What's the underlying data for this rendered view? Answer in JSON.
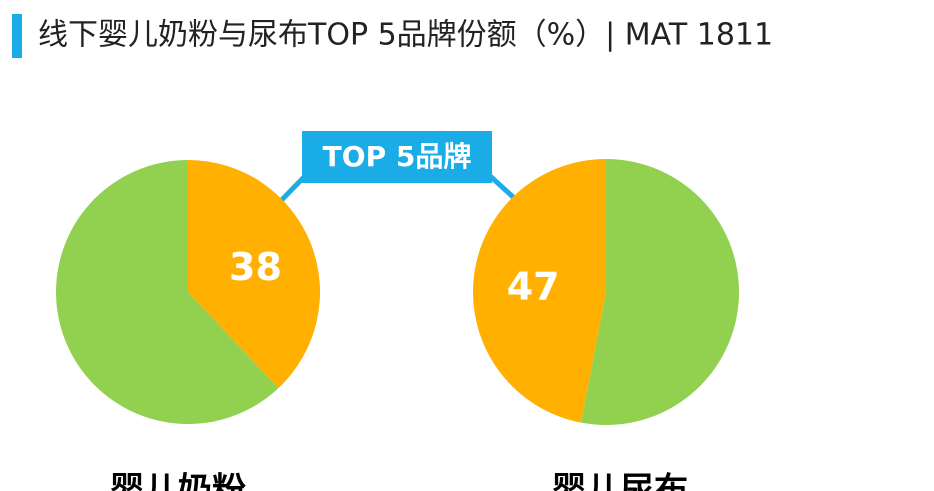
{
  "title": "线下婴儿奶粉与尿布TOP 5品牌份额（%）| MAT 1811",
  "annotation": "TOP 5品牌",
  "chart_data": [
    {
      "type": "pie",
      "title": "婴儿奶粉",
      "values": [
        38,
        62
      ],
      "colors": [
        "#FFB000",
        "#92D050"
      ],
      "value_labels": [
        "38",
        null
      ]
    },
    {
      "type": "pie",
      "title": "婴儿尿布",
      "values": [
        53,
        47
      ],
      "colors": [
        "#92D050",
        "#FFB000"
      ],
      "value_labels": [
        null,
        "47"
      ]
    }
  ]
}
